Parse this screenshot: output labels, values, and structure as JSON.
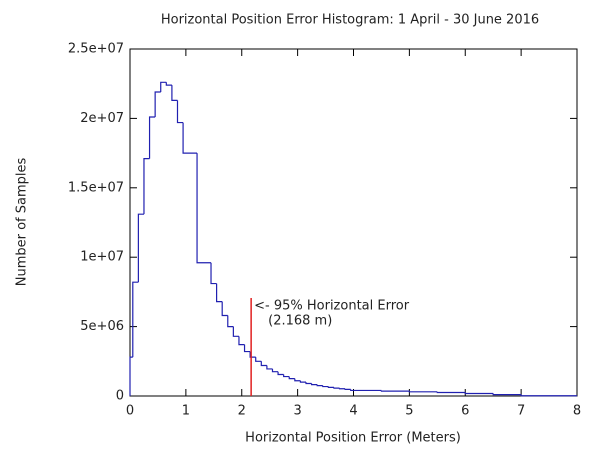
{
  "chart_data": {
    "type": "histogram",
    "title": "Horizontal Position Error Histogram: 1 April - 30 June 2016",
    "x_label": "Horizontal Position Error (Meters)",
    "y_label": "Number of Samples",
    "color": "#2020b0",
    "bins": [
      0,
      0.05,
      0.15,
      0.25,
      0.35,
      0.45,
      0.55,
      0.65,
      0.75,
      0.85,
      0.95,
      1.2,
      1.45,
      1.55,
      1.65,
      1.75,
      1.85,
      1.95,
      2.05,
      2.15,
      2.25,
      2.35,
      2.45,
      2.55,
      2.65,
      2.75,
      2.85,
      2.95,
      3.05,
      3.15,
      3.25,
      3.35,
      3.45,
      3.55,
      3.65,
      3.75,
      3.85,
      3.95,
      4.5,
      5,
      5.5,
      6,
      6.5,
      7,
      8
    ],
    "values": [
      2800000,
      8200000,
      13100000,
      17100000,
      20100000,
      21900000,
      22600000,
      22400000,
      21300000,
      19700000,
      17500000,
      9600000,
      8100000,
      6800000,
      5800000,
      5000000,
      4300000,
      3700000,
      3200000,
      2800000,
      2500000,
      2200000,
      1950000,
      1750000,
      1550000,
      1400000,
      1250000,
      1100000,
      1000000,
      900000,
      820000,
      750000,
      680000,
      620000,
      570000,
      520000,
      480000,
      400000,
      350000,
      300000,
      250000,
      180000,
      100000,
      20000
    ],
    "xlim": [
      0,
      8
    ],
    "xticks": [
      0,
      1,
      2,
      3,
      4,
      5,
      6,
      7,
      8
    ],
    "ylim": [
      0,
      25000000
    ],
    "yticks": [
      0,
      {
        "value": 5000000,
        "label": "5e+06"
      },
      {
        "value": 10000000,
        "label": "1e+07"
      },
      {
        "value": 15000000,
        "label": "1.5e+07"
      },
      {
        "value": 20000000,
        "label": "2e+07"
      },
      {
        "value": 25000000,
        "label": "2.5e+07"
      }
    ],
    "marker": {
      "x": 2.168,
      "color": "#e02020",
      "label": "<- 95% Horizontal Error",
      "sublabel": "(2.168 m)"
    }
  }
}
